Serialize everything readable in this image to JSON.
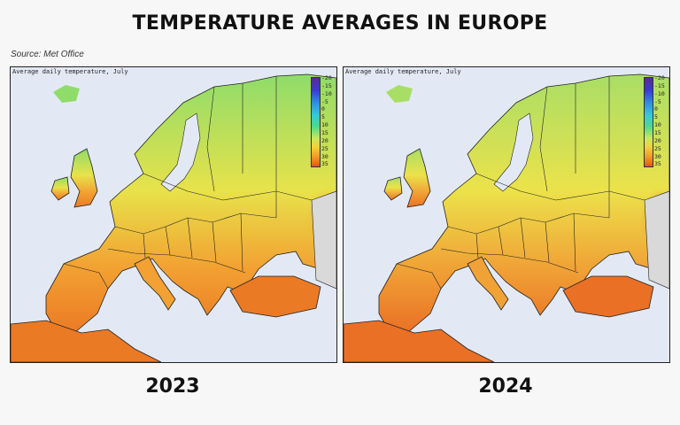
{
  "title": "TEMPERATURE AVERAGES IN EUROPE",
  "source": "Source: Met Office",
  "map_subtitle": "Average daily temperature, July",
  "colorbar_ticks": [
    "-20",
    "-15",
    "-10",
    "-5",
    "0",
    "5",
    "10",
    "15",
    "20",
    "25",
    "30",
    "35"
  ],
  "panels": [
    {
      "year": "2023",
      "colors": {
        "north": "#8fdc6a",
        "mid": "#e8e24a",
        "south": "#f2a132",
        "hot": "#eb7a24",
        "east": "#eec23e"
      }
    },
    {
      "year": "2024",
      "colors": {
        "north": "#a9de66",
        "mid": "#ece24a",
        "south": "#f0a236",
        "hot": "#ea7026",
        "east": "#f0b43c"
      }
    }
  ]
}
